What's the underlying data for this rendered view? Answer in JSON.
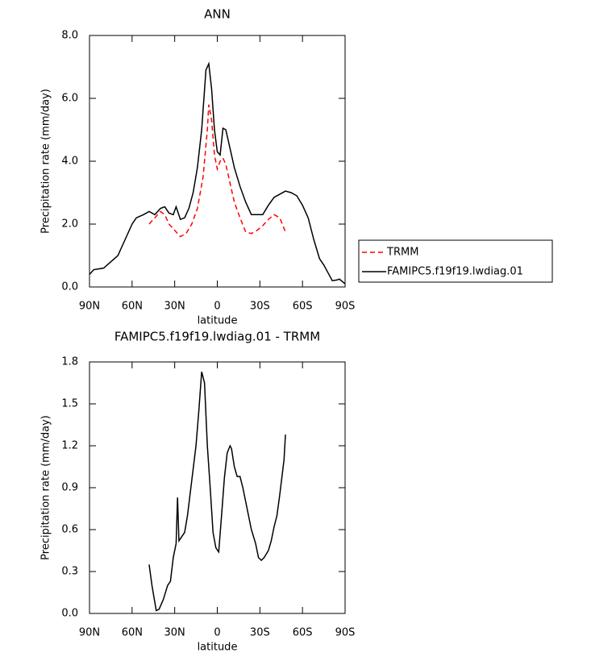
{
  "chart_data": [
    {
      "type": "line",
      "title": "ANN",
      "xlabel": "latitude",
      "ylabel": "Precipitation rate (mm/day)",
      "xlim": [
        90,
        -90
      ],
      "xticks": [
        {
          "value": 90,
          "label": "90N"
        },
        {
          "value": 60,
          "label": "60N"
        },
        {
          "value": 30,
          "label": "30N"
        },
        0,
        {
          "value": -30,
          "label": "30S"
        },
        {
          "value": -60,
          "label": "60S"
        },
        {
          "value": -90,
          "label": "90S"
        }
      ],
      "ylim": [
        0,
        8
      ],
      "yticks": [
        {
          "value": 0,
          "label": "0.0"
        },
        {
          "value": 2,
          "label": "2.0"
        },
        {
          "value": 4,
          "label": "4.0"
        },
        {
          "value": 6,
          "label": "6.0"
        },
        {
          "value": 8,
          "label": "8.0"
        }
      ],
      "legend": "right",
      "series": [
        {
          "name": "TRMM",
          "color": "#ff0000",
          "dash": true,
          "x": [
            48,
            44,
            40,
            37,
            34,
            30,
            26,
            22,
            18,
            14,
            10,
            7,
            6,
            4,
            2,
            0,
            -2,
            -4,
            -6,
            -8,
            -12,
            -16,
            -20,
            -24,
            -28,
            -32,
            -36,
            -40,
            -44,
            -48
          ],
          "values": [
            2.0,
            2.2,
            2.4,
            2.3,
            2.0,
            1.8,
            1.6,
            1.7,
            2.0,
            2.5,
            3.5,
            5.0,
            5.8,
            5.3,
            4.2,
            3.75,
            4.0,
            4.1,
            3.9,
            3.5,
            2.7,
            2.2,
            1.75,
            1.7,
            1.8,
            1.95,
            2.15,
            2.3,
            2.2,
            1.75
          ]
        },
        {
          "name": "FAMIPC5.f19f19.lwdiag.01",
          "color": "#000000",
          "dash": false,
          "x": [
            90,
            87,
            80,
            75,
            70,
            65,
            60,
            57,
            52,
            48,
            44,
            40,
            37,
            34,
            31,
            29,
            26,
            23,
            20,
            17,
            14,
            11,
            8,
            6,
            4,
            2,
            0,
            -2,
            -4,
            -6,
            -8,
            -12,
            -16,
            -20,
            -24,
            -28,
            -32,
            -36,
            -40,
            -44,
            -48,
            -52,
            -56,
            -60,
            -64,
            -68,
            -72,
            -75,
            -78,
            -81,
            -84,
            -86,
            -90
          ],
          "values": [
            0.4,
            0.55,
            0.6,
            0.8,
            1.0,
            1.5,
            2.0,
            2.2,
            2.3,
            2.4,
            2.3,
            2.5,
            2.55,
            2.35,
            2.3,
            2.55,
            2.15,
            2.2,
            2.5,
            3.0,
            3.8,
            5.0,
            6.9,
            7.1,
            6.3,
            5.0,
            4.3,
            4.2,
            5.05,
            5.0,
            4.6,
            3.8,
            3.2,
            2.7,
            2.3,
            2.3,
            2.3,
            2.6,
            2.85,
            2.95,
            3.05,
            3.0,
            2.9,
            2.6,
            2.2,
            1.5,
            0.9,
            0.7,
            0.45,
            0.2,
            0.22,
            0.25,
            0.1
          ]
        }
      ]
    },
    {
      "type": "line",
      "title": "FAMIPC5.f19f19.lwdiag.01 - TRMM",
      "xlabel": "latitude",
      "ylabel": "Precipitation rate (mm/day)",
      "xlim": [
        90,
        -90
      ],
      "xticks": [
        {
          "value": 90,
          "label": "90N"
        },
        {
          "value": 60,
          "label": "60N"
        },
        {
          "value": 30,
          "label": "30N"
        },
        0,
        {
          "value": -30,
          "label": "30S"
        },
        {
          "value": -60,
          "label": "60S"
        },
        {
          "value": -90,
          "label": "90S"
        }
      ],
      "ylim": [
        0,
        1.8
      ],
      "yticks": [
        {
          "value": 0,
          "label": "0.0"
        },
        0.3,
        0.6,
        0.9,
        1.2,
        1.5,
        1.8
      ],
      "series": [
        {
          "color": "#000000",
          "dash": false,
          "x": [
            48,
            46,
            43,
            41,
            38,
            35,
            33,
            31,
            29,
            28,
            27,
            25,
            23,
            21,
            18,
            15,
            13,
            11,
            9,
            7,
            5,
            3,
            1,
            -1,
            -3,
            -5,
            -7,
            -9,
            -10,
            -12,
            -14,
            -16,
            -18,
            -21,
            -24,
            -27,
            -29,
            -31,
            -33,
            -36,
            -38,
            -40,
            -42,
            -44,
            -47,
            -48
          ],
          "values": [
            0.35,
            0.2,
            0.02,
            0.03,
            0.1,
            0.2,
            0.23,
            0.4,
            0.5,
            0.83,
            0.52,
            0.55,
            0.58,
            0.7,
            0.95,
            1.2,
            1.45,
            1.73,
            1.65,
            1.2,
            0.9,
            0.58,
            0.47,
            0.44,
            0.7,
            0.97,
            1.15,
            1.2,
            1.18,
            1.05,
            0.98,
            0.98,
            0.9,
            0.75,
            0.6,
            0.5,
            0.4,
            0.38,
            0.4,
            0.45,
            0.52,
            0.62,
            0.7,
            0.85,
            1.1,
            1.28
          ]
        }
      ]
    }
  ]
}
